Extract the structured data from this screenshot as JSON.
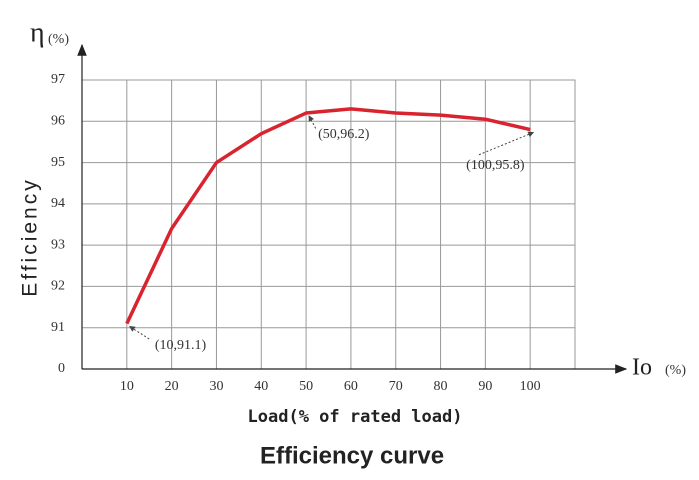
{
  "chart_data": {
    "type": "line",
    "title": "Efficiency curve",
    "x_label": "Load(% of rated load)",
    "y_label": "Efficiency",
    "y_symbol": "η",
    "y_unit": "(%)",
    "x_symbol": "Io",
    "x_unit": "(%)",
    "x": [
      10,
      20,
      30,
      40,
      50,
      60,
      70,
      80,
      90,
      100
    ],
    "series": [
      {
        "name": "Efficiency",
        "color": "#d9232e",
        "values": [
          91.1,
          93.4,
          95.0,
          95.7,
          96.2,
          96.3,
          96.2,
          96.15,
          96.05,
          95.8
        ]
      }
    ],
    "value_labels": [
      "(10,91.1)",
      null,
      null,
      null,
      "(50,96.2)",
      null,
      null,
      null,
      null,
      "(100,95.8)"
    ],
    "xlim": [
      0,
      110
    ],
    "xticks": [
      10,
      20,
      30,
      40,
      50,
      60,
      70,
      80,
      90,
      100
    ],
    "ylim": [
      90,
      97
    ],
    "yticks": [
      {
        "value": 90,
        "label": "0"
      },
      91,
      92,
      93,
      94,
      95,
      96,
      97
    ],
    "grid": true
  }
}
